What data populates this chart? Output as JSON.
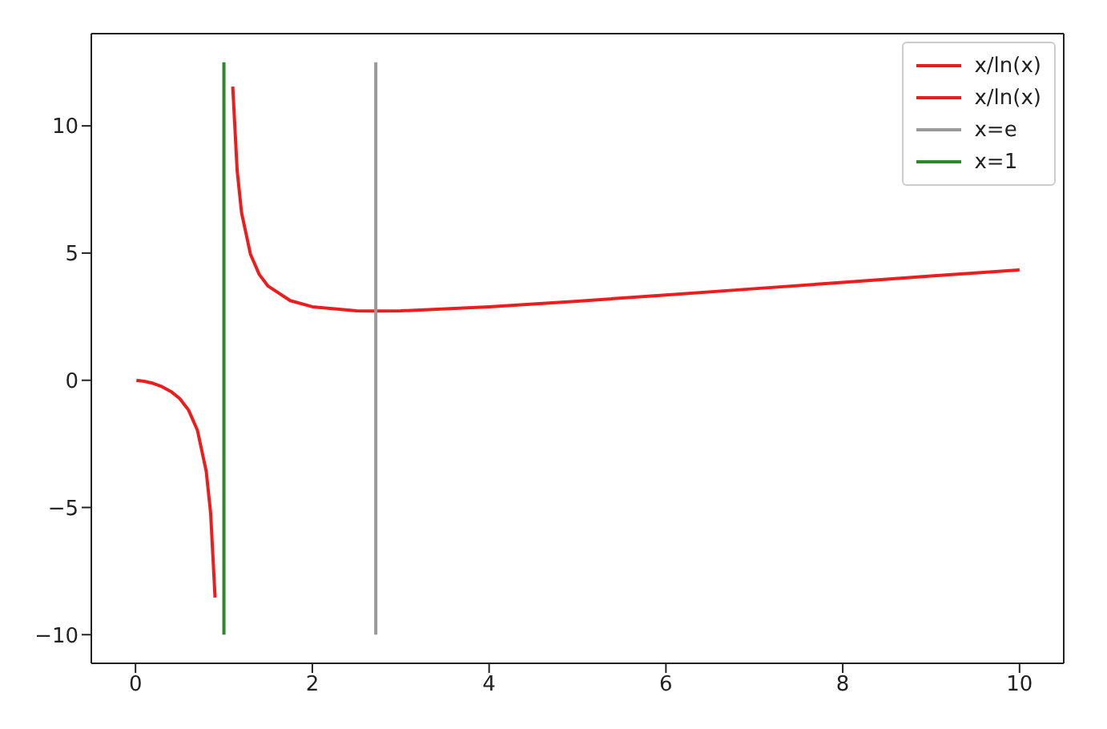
{
  "chart_data": {
    "type": "line",
    "xlim": [
      -0.5,
      10.5
    ],
    "ylim": [
      -11.125,
      13.625
    ],
    "xticks": [
      0,
      2,
      4,
      6,
      8,
      10
    ],
    "yticks": [
      {
        "value": -10,
        "label": "−10"
      },
      {
        "value": -5,
        "label": "−5"
      },
      0,
      5,
      10
    ],
    "legend": "top right",
    "series": [
      {
        "name": "x/ln(x)",
        "color": "#ee1c1c",
        "x": [
          0.01,
          0.1,
          0.2,
          0.3,
          0.4,
          0.5,
          0.6,
          0.7,
          0.8,
          0.85,
          0.9
        ],
        "values": [
          0,
          -0.04,
          -0.12,
          -0.25,
          -0.44,
          -0.72,
          -1.17,
          -1.96,
          -3.58,
          -5.23,
          -8.54
        ]
      },
      {
        "name": "x/ln(x)",
        "color": "#ee1c1c",
        "x": [
          1.1,
          1.15,
          1.2,
          1.3,
          1.4,
          1.5,
          1.75,
          2,
          2.5,
          2.718,
          3,
          4,
          5,
          6,
          7,
          8,
          9,
          10
        ],
        "values": [
          11.54,
          8.23,
          6.58,
          4.96,
          4.16,
          3.7,
          3.13,
          2.89,
          2.73,
          2.72,
          2.73,
          2.89,
          3.11,
          3.35,
          3.6,
          3.85,
          4.1,
          4.34
        ]
      },
      {
        "name": "x=e",
        "color": "#999999",
        "x": [
          2.718,
          2.718
        ],
        "values": [
          -10,
          12.5
        ]
      },
      {
        "name": "x=1",
        "color": "#2a8a2a",
        "x": [
          1,
          1
        ],
        "values": [
          -10,
          12.5
        ]
      }
    ]
  }
}
